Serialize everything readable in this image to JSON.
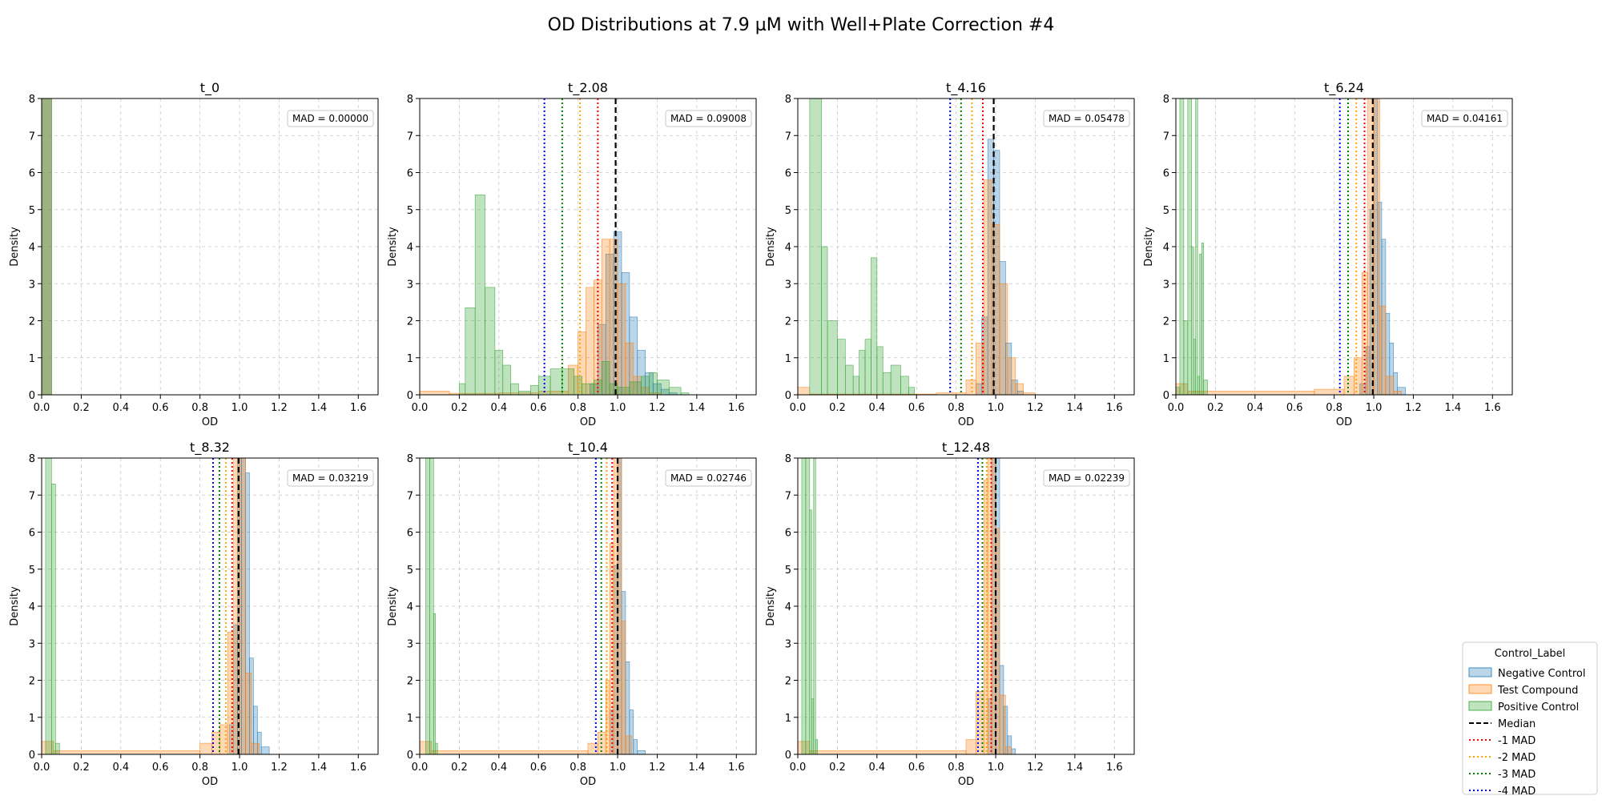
{
  "chart_data": {
    "type": "histogram",
    "title": "OD Distributions at 7.9 µM with Well+Plate Correction #4",
    "xlabel": "OD",
    "ylabel": "Density",
    "xlim": [
      0,
      1.7
    ],
    "ylim": [
      0,
      8
    ],
    "xticks": [
      "0.0",
      "0.2",
      "0.4",
      "0.6",
      "0.8",
      "1.0",
      "1.2",
      "1.4",
      "1.6"
    ],
    "yticks": [
      "0",
      "1",
      "2",
      "3",
      "4",
      "5",
      "6",
      "7",
      "8"
    ],
    "grid": true,
    "colors": {
      "negative": "#1f77b4",
      "test": "#ff7f0e",
      "positive": "#2ca02c",
      "median": "#000000",
      "mad1": "#ff0000",
      "mad2": "#ffa500",
      "mad3": "#008000",
      "mad4": "#0000ff"
    },
    "legend": {
      "title": "Control_Label",
      "placement": "bottom-right",
      "entries": [
        "Negative Control",
        "Test Compound",
        "Positive Control",
        "Median",
        "-1 MAD",
        "-2 MAD",
        "-3 MAD",
        "-4 MAD"
      ]
    },
    "panels": [
      {
        "title": "t_0",
        "mad_label": "MAD = 0.00000",
        "median": null,
        "mad": 0,
        "negative": [
          [
            0.0,
            0.05,
            8.5
          ]
        ],
        "test": [
          [
            0.0,
            0.05,
            8.5
          ]
        ],
        "positive": [
          [
            0.0,
            0.05,
            8.5
          ]
        ]
      },
      {
        "title": "t_2.08",
        "mad_label": "MAD = 0.09008",
        "median": 0.99,
        "mad": 0.09,
        "negative": [
          [
            0.86,
            0.9,
            0.3
          ],
          [
            0.9,
            0.94,
            1.9
          ],
          [
            0.94,
            0.98,
            3.8
          ],
          [
            0.98,
            1.02,
            4.4
          ],
          [
            1.02,
            1.06,
            3.3
          ],
          [
            1.06,
            1.1,
            2.1
          ],
          [
            1.1,
            1.14,
            1.2
          ],
          [
            1.14,
            1.18,
            0.6
          ],
          [
            1.18,
            1.22,
            0.3
          ],
          [
            1.22,
            1.26,
            0.15
          ],
          [
            1.26,
            1.3,
            0.05
          ]
        ],
        "test": [
          [
            0.0,
            0.15,
            0.1
          ],
          [
            0.15,
            0.4,
            0.04
          ],
          [
            0.4,
            0.6,
            0.05
          ],
          [
            0.6,
            0.75,
            0.1
          ],
          [
            0.75,
            0.8,
            0.8
          ],
          [
            0.8,
            0.84,
            1.7
          ],
          [
            0.84,
            0.88,
            2.9
          ],
          [
            0.88,
            0.92,
            3.1
          ],
          [
            0.92,
            0.96,
            4.2
          ],
          [
            0.96,
            1.0,
            4.2
          ],
          [
            1.0,
            1.04,
            3.0
          ],
          [
            1.04,
            1.08,
            1.4
          ],
          [
            1.08,
            1.12,
            0.5
          ],
          [
            1.12,
            1.16,
            0.2
          ],
          [
            1.16,
            1.22,
            0.05
          ]
        ],
        "positive": [
          [
            0.2,
            0.23,
            0.3
          ],
          [
            0.23,
            0.28,
            2.35
          ],
          [
            0.28,
            0.33,
            5.4
          ],
          [
            0.33,
            0.38,
            2.9
          ],
          [
            0.38,
            0.42,
            1.2
          ],
          [
            0.42,
            0.46,
            0.8
          ],
          [
            0.46,
            0.5,
            0.3
          ],
          [
            0.5,
            0.56,
            0.1
          ],
          [
            0.56,
            0.6,
            0.25
          ],
          [
            0.6,
            0.66,
            0.5
          ],
          [
            0.66,
            0.72,
            0.7
          ],
          [
            0.72,
            0.78,
            0.7
          ],
          [
            0.78,
            0.82,
            0.5
          ],
          [
            0.82,
            0.88,
            0.3
          ],
          [
            0.88,
            0.92,
            0.4
          ],
          [
            0.92,
            0.96,
            0.9
          ],
          [
            0.96,
            1.0,
            0.3
          ],
          [
            1.0,
            1.06,
            0.2
          ],
          [
            1.06,
            1.12,
            0.35
          ],
          [
            1.12,
            1.16,
            0.5
          ],
          [
            1.16,
            1.2,
            0.6
          ],
          [
            1.2,
            1.26,
            0.4
          ],
          [
            1.26,
            1.32,
            0.2
          ],
          [
            1.32,
            1.36,
            0.05
          ]
        ]
      },
      {
        "title": "t_4.16",
        "mad_label": "MAD = 0.05478",
        "median": 0.99,
        "mad": 0.055,
        "negative": [
          [
            0.9,
            0.93,
            0.3
          ],
          [
            0.93,
            0.96,
            2.1
          ],
          [
            0.96,
            0.99,
            6.9
          ],
          [
            0.99,
            1.02,
            6.6
          ],
          [
            1.02,
            1.05,
            3.6
          ],
          [
            1.05,
            1.08,
            1.4
          ],
          [
            1.08,
            1.11,
            0.4
          ],
          [
            1.11,
            1.14,
            0.1
          ]
        ],
        "test": [
          [
            0.0,
            0.06,
            0.2
          ],
          [
            0.06,
            0.7,
            0.02
          ],
          [
            0.7,
            0.85,
            0.05
          ],
          [
            0.85,
            0.9,
            0.4
          ],
          [
            0.9,
            0.94,
            1.4
          ],
          [
            0.94,
            0.98,
            5.8
          ],
          [
            0.98,
            1.02,
            4.6
          ],
          [
            1.02,
            1.06,
            3.0
          ],
          [
            1.06,
            1.1,
            1.0
          ],
          [
            1.1,
            1.14,
            0.3
          ],
          [
            1.14,
            1.2,
            0.05
          ]
        ],
        "positive": [
          [
            0.06,
            0.12,
            8.5
          ],
          [
            0.12,
            0.15,
            4.0
          ],
          [
            0.15,
            0.2,
            2.0
          ],
          [
            0.2,
            0.24,
            1.5
          ],
          [
            0.24,
            0.28,
            0.8
          ],
          [
            0.28,
            0.31,
            0.5
          ],
          [
            0.31,
            0.34,
            1.2
          ],
          [
            0.34,
            0.37,
            1.5
          ],
          [
            0.37,
            0.4,
            3.7
          ],
          [
            0.4,
            0.43,
            1.3
          ],
          [
            0.43,
            0.47,
            0.6
          ],
          [
            0.47,
            0.52,
            0.8
          ],
          [
            0.52,
            0.56,
            0.5
          ],
          [
            0.56,
            0.59,
            0.2
          ]
        ]
      },
      {
        "title": "t_6.24",
        "mad_label": "MAD = 0.04161",
        "median": 0.995,
        "mad": 0.0416,
        "negative": [
          [
            0.93,
            0.96,
            0.3
          ],
          [
            0.96,
            0.98,
            1.3
          ],
          [
            0.98,
            1.0,
            5.0
          ],
          [
            1.0,
            1.02,
            8.5
          ],
          [
            1.02,
            1.04,
            5.2
          ],
          [
            1.04,
            1.06,
            4.2
          ],
          [
            1.06,
            1.08,
            2.2
          ],
          [
            1.08,
            1.1,
            1.4
          ],
          [
            1.1,
            1.12,
            0.6
          ],
          [
            1.12,
            1.16,
            0.2
          ]
        ],
        "test": [
          [
            0.0,
            0.06,
            0.3
          ],
          [
            0.06,
            0.7,
            0.1
          ],
          [
            0.7,
            0.85,
            0.15
          ],
          [
            0.85,
            0.9,
            0.5
          ],
          [
            0.9,
            0.94,
            1.0
          ],
          [
            0.94,
            0.97,
            3.3
          ],
          [
            0.97,
            1.0,
            8.5
          ],
          [
            1.0,
            1.03,
            8.5
          ],
          [
            1.03,
            1.06,
            2.4
          ],
          [
            1.06,
            1.1,
            0.5
          ],
          [
            1.1,
            1.14,
            0.1
          ]
        ],
        "positive": [
          [
            0.0,
            0.02,
            0.2
          ],
          [
            0.02,
            0.04,
            8.5
          ],
          [
            0.04,
            0.06,
            2.0
          ],
          [
            0.06,
            0.08,
            8.5
          ],
          [
            0.08,
            0.09,
            4.0
          ],
          [
            0.09,
            0.1,
            1.5
          ],
          [
            0.1,
            0.11,
            8.5
          ],
          [
            0.11,
            0.12,
            0.5
          ],
          [
            0.12,
            0.13,
            3.8
          ],
          [
            0.13,
            0.14,
            4.1
          ],
          [
            0.14,
            0.16,
            0.4
          ]
        ]
      },
      {
        "title": "t_8.32",
        "mad_label": "MAD = 0.03219",
        "median": 0.995,
        "mad": 0.0322,
        "negative": [
          [
            0.95,
            0.97,
            0.8
          ],
          [
            0.97,
            0.99,
            3.5
          ],
          [
            0.99,
            1.01,
            8.5
          ],
          [
            1.01,
            1.03,
            8.5
          ],
          [
            1.03,
            1.05,
            7.6
          ],
          [
            1.05,
            1.07,
            2.6
          ],
          [
            1.07,
            1.09,
            1.3
          ],
          [
            1.09,
            1.11,
            0.6
          ],
          [
            1.11,
            1.15,
            0.2
          ]
        ],
        "test": [
          [
            0.0,
            0.06,
            0.35
          ],
          [
            0.06,
            0.8,
            0.1
          ],
          [
            0.8,
            0.86,
            0.3
          ],
          [
            0.86,
            0.9,
            0.6
          ],
          [
            0.9,
            0.94,
            0.8
          ],
          [
            0.94,
            0.97,
            3.3
          ],
          [
            0.97,
            1.0,
            8.5
          ],
          [
            1.0,
            1.03,
            8.5
          ],
          [
            1.03,
            1.06,
            2.2
          ],
          [
            1.06,
            1.1,
            0.3
          ]
        ],
        "positive": [
          [
            0.02,
            0.05,
            8.5
          ],
          [
            0.05,
            0.07,
            7.3
          ],
          [
            0.07,
            0.09,
            0.3
          ]
        ]
      },
      {
        "title": "t_10.4",
        "mad_label": "MAD = 0.02746",
        "median": 1.0,
        "mad": 0.0275,
        "negative": [
          [
            0.96,
            0.98,
            1.2
          ],
          [
            0.98,
            1.0,
            5.1
          ],
          [
            1.0,
            1.02,
            8.5
          ],
          [
            1.02,
            1.04,
            4.4
          ],
          [
            1.04,
            1.06,
            2.5
          ],
          [
            1.06,
            1.08,
            1.2
          ],
          [
            1.08,
            1.1,
            0.4
          ],
          [
            1.1,
            1.14,
            0.1
          ]
        ],
        "test": [
          [
            0.0,
            0.06,
            0.35
          ],
          [
            0.06,
            0.85,
            0.1
          ],
          [
            0.85,
            0.9,
            0.3
          ],
          [
            0.9,
            0.94,
            0.6
          ],
          [
            0.94,
            0.96,
            2.0
          ],
          [
            0.96,
            0.98,
            5.7
          ],
          [
            0.98,
            1.0,
            8.5
          ],
          [
            1.0,
            1.02,
            8.5
          ],
          [
            1.02,
            1.04,
            3.6
          ],
          [
            1.04,
            1.07,
            0.5
          ]
        ],
        "positive": [
          [
            0.03,
            0.05,
            8.5
          ],
          [
            0.05,
            0.07,
            8.5
          ],
          [
            0.07,
            0.08,
            3.8
          ],
          [
            0.08,
            0.09,
            0.3
          ]
        ]
      },
      {
        "title": "t_12.48",
        "mad_label": "MAD = 0.02239",
        "median": 1.0,
        "mad": 0.0224,
        "negative": [
          [
            0.96,
            0.98,
            1.5
          ],
          [
            0.98,
            1.0,
            8.5
          ],
          [
            1.0,
            1.02,
            8.5
          ],
          [
            1.02,
            1.04,
            2.4
          ],
          [
            1.04,
            1.06,
            1.3
          ],
          [
            1.06,
            1.08,
            0.5
          ],
          [
            1.08,
            1.1,
            0.15
          ]
        ],
        "test": [
          [
            0.0,
            0.06,
            0.35
          ],
          [
            0.06,
            0.85,
            0.1
          ],
          [
            0.85,
            0.9,
            0.4
          ],
          [
            0.9,
            0.94,
            1.7
          ],
          [
            0.94,
            0.96,
            7.4
          ],
          [
            0.96,
            0.98,
            8.5
          ],
          [
            0.98,
            1.0,
            8.5
          ],
          [
            1.0,
            1.02,
            6.1
          ],
          [
            1.02,
            1.05,
            1.6
          ],
          [
            1.05,
            1.08,
            0.2
          ]
        ],
        "positive": [
          [
            0.02,
            0.04,
            8.5
          ],
          [
            0.04,
            0.06,
            8.5
          ],
          [
            0.06,
            0.07,
            6.6
          ],
          [
            0.07,
            0.08,
            1.5
          ],
          [
            0.08,
            0.09,
            8.5
          ],
          [
            0.09,
            0.1,
            0.4
          ]
        ]
      }
    ]
  }
}
